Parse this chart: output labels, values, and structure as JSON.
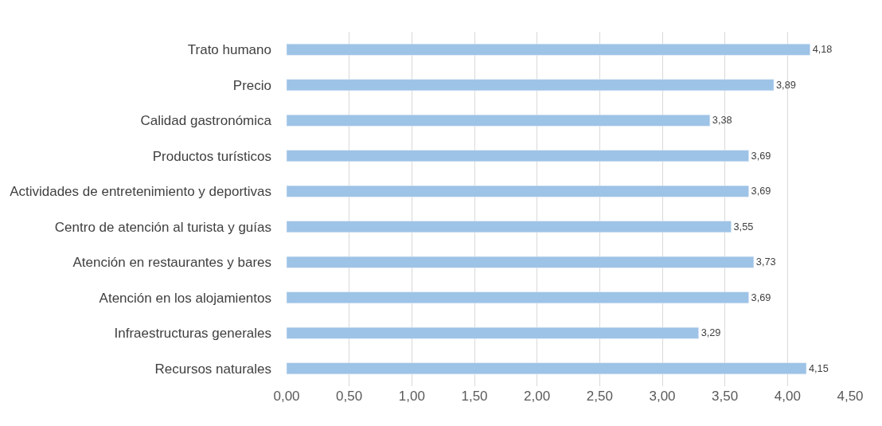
{
  "chart_data": {
    "type": "bar",
    "orientation": "horizontal",
    "categories": [
      "Trato humano",
      "Precio",
      "Calidad gastronómica",
      "Productos turísticos",
      "Actividades de entretenimiento y deportivas",
      "Centro de atención al turista y guías",
      "Atención en restaurantes y bares",
      "Atención en los alojamientos",
      "Infraestructuras generales",
      "Recursos naturales"
    ],
    "values": [
      4.18,
      3.89,
      3.38,
      3.69,
      3.69,
      3.55,
      3.73,
      3.69,
      3.29,
      4.15
    ],
    "value_labels": [
      "4,18",
      "3,89",
      "3,38",
      "3,69",
      "3,69",
      "3,55",
      "3,73",
      "3,69",
      "3,29",
      "4,15"
    ],
    "color": "#9dc3e6",
    "xlim": [
      0,
      4.5
    ],
    "xticks": [
      {
        "value": 0,
        "label": "0,00"
      },
      {
        "value": 0.5,
        "label": "0,50"
      },
      {
        "value": 1,
        "label": "1,00"
      },
      {
        "value": 1.5,
        "label": "1,50"
      },
      {
        "value": 2,
        "label": "2,00"
      },
      {
        "value": 2.5,
        "label": "2,50"
      },
      {
        "value": 3,
        "label": "3,00"
      },
      {
        "value": 3.5,
        "label": "3,50"
      },
      {
        "value": 4,
        "label": "4,00"
      },
      {
        "value": 4.5,
        "label": "4,50"
      }
    ],
    "grid": "x",
    "legend": false
  }
}
